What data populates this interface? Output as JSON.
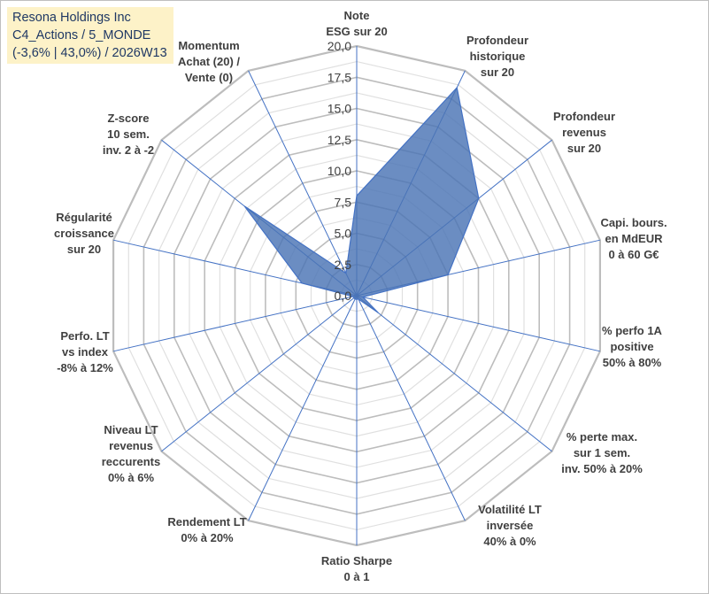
{
  "header": {
    "company": "Resona Holdings Inc",
    "portfolio": "C4_Actions / 5_MONDE",
    "summary": "(-3,6% | 43,0%) / 2026W13"
  },
  "colors": {
    "fill": "#4a74b4",
    "stroke": "#4472c4",
    "grid": "#c8c8c8",
    "spoke": "#4472c4",
    "box": "#fdf2c8",
    "box_text": "#1f3864"
  },
  "chart_data": {
    "type": "radar",
    "title": "",
    "rlim": [
      0,
      20
    ],
    "ticks": [
      "0,0",
      "2,5",
      "5,0",
      "7,5",
      "10,0",
      "12,5",
      "15,0",
      "17,5",
      "20,0"
    ],
    "tick_values": [
      0,
      2.5,
      5,
      7.5,
      10,
      12.5,
      15,
      17.5,
      20
    ],
    "axes": [
      {
        "label": [
          "Note",
          "ESG sur 20"
        ],
        "value": 8.0
      },
      {
        "label": [
          "Profondeur",
          "historique",
          "sur 20"
        ],
        "value": 18.5
      },
      {
        "label": [
          "Profondeur",
          "revenus",
          "sur 20"
        ],
        "value": 12.5
      },
      {
        "label": [
          "Capi. bours.",
          "en MdEUR",
          "0 à 60 G€"
        ],
        "value": 7.5
      },
      {
        "label": [
          "% perfo 1A",
          "positive",
          "50% à 80%"
        ],
        "value": 0.5
      },
      {
        "label": [
          "% perte max.",
          "sur 1 sem.",
          "inv. 50% à 20%"
        ],
        "value": 2.2
      },
      {
        "label": [
          "Volatilité LT",
          "inversée",
          "40% à 0%"
        ],
        "value": 0.3
      },
      {
        "label": [
          "Ratio Sharpe",
          "0 à 1"
        ],
        "value": 0.3
      },
      {
        "label": [
          "Rendement LT",
          "0% à 20%"
        ],
        "value": 0.3
      },
      {
        "label": [
          "Niveau LT",
          "revenus",
          "reccurents",
          "0% à 6%"
        ],
        "value": 0.3
      },
      {
        "label": [
          "Perfo. LT",
          "vs index",
          "-8% à 12%"
        ],
        "value": 0.3
      },
      {
        "label": [
          "Régularité",
          "croissance",
          "sur 20"
        ],
        "value": 4.5
      },
      {
        "label": [
          "Z-score",
          "10 sem.",
          "inv. 2 à -2"
        ],
        "value": 11.5
      },
      {
        "label": [
          "Momentum",
          "Achat (20) /",
          "Vente (0)"
        ],
        "value": 2.0
      }
    ]
  }
}
